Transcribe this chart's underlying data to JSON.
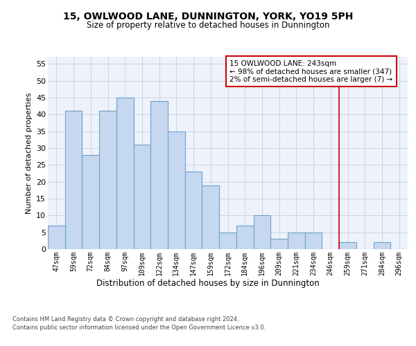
{
  "title1": "15, OWLWOOD LANE, DUNNINGTON, YORK, YO19 5PH",
  "title2": "Size of property relative to detached houses in Dunnington",
  "xlabel": "Distribution of detached houses by size in Dunnington",
  "ylabel": "Number of detached properties",
  "categories": [
    "47sqm",
    "59sqm",
    "72sqm",
    "84sqm",
    "97sqm",
    "109sqm",
    "122sqm",
    "134sqm",
    "147sqm",
    "159sqm",
    "172sqm",
    "184sqm",
    "196sqm",
    "209sqm",
    "221sqm",
    "234sqm",
    "246sqm",
    "259sqm",
    "271sqm",
    "284sqm",
    "296sqm"
  ],
  "values": [
    7,
    41,
    28,
    41,
    45,
    31,
    44,
    35,
    23,
    19,
    5,
    7,
    10,
    3,
    5,
    5,
    0,
    2,
    0,
    2,
    0
  ],
  "bar_color": "#c5d8f0",
  "bar_edge_color": "#6ca0cc",
  "background_color": "#eef2fb",
  "grid_color": "#c8cfe0",
  "vline_index": 16,
  "annotation_line1": "15 OWLWOOD LANE: 243sqm",
  "annotation_line2": "← 98% of detached houses are smaller (347)",
  "annotation_line3": "2% of semi-detached houses are larger (7) →",
  "ylim": [
    0,
    57
  ],
  "yticks": [
    0,
    5,
    10,
    15,
    20,
    25,
    30,
    35,
    40,
    45,
    50,
    55
  ],
  "footnote1": "Contains HM Land Registry data © Crown copyright and database right 2024.",
  "footnote2": "Contains public sector information licensed under the Open Government Licence v3.0."
}
